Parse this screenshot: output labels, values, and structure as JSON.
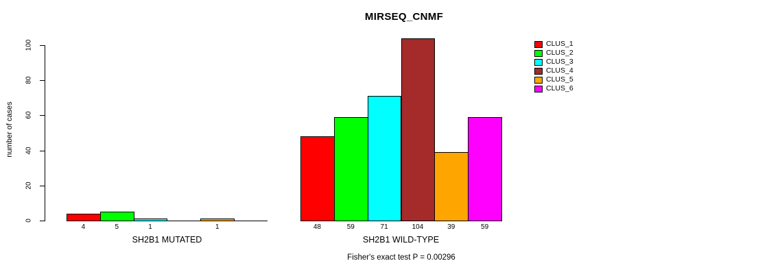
{
  "chart_data": {
    "type": "bar",
    "title": "MIRSEQ_CNMF",
    "ylabel": "number of cases",
    "ylim": [
      0,
      100
    ],
    "yticks": [
      0,
      20,
      40,
      60,
      80,
      100
    ],
    "grid": false,
    "legend_position": "right",
    "series": [
      {
        "name": "CLUS_1",
        "color": "#FF0000",
        "values": [
          4,
          48
        ]
      },
      {
        "name": "CLUS_2",
        "color": "#00FF00",
        "values": [
          5,
          59
        ]
      },
      {
        "name": "CLUS_3",
        "color": "#00FFFF",
        "values": [
          1,
          71
        ]
      },
      {
        "name": "CLUS_4",
        "color": "#A52A2A",
        "values": [
          0,
          104
        ]
      },
      {
        "name": "CLUS_5",
        "color": "#FFA500",
        "values": [
          1,
          39
        ]
      },
      {
        "name": "CLUS_6",
        "color": "#FF00FF",
        "values": [
          0,
          59
        ]
      }
    ],
    "groups": [
      {
        "label": "SH2B1 MUTATED",
        "values": [
          4,
          5,
          1,
          0,
          1,
          0
        ]
      },
      {
        "label": "SH2B1 WILD-TYPE",
        "values": [
          48,
          59,
          71,
          104,
          39,
          59
        ]
      }
    ],
    "footnote": "Fisher's exact test P = 0.00296"
  }
}
